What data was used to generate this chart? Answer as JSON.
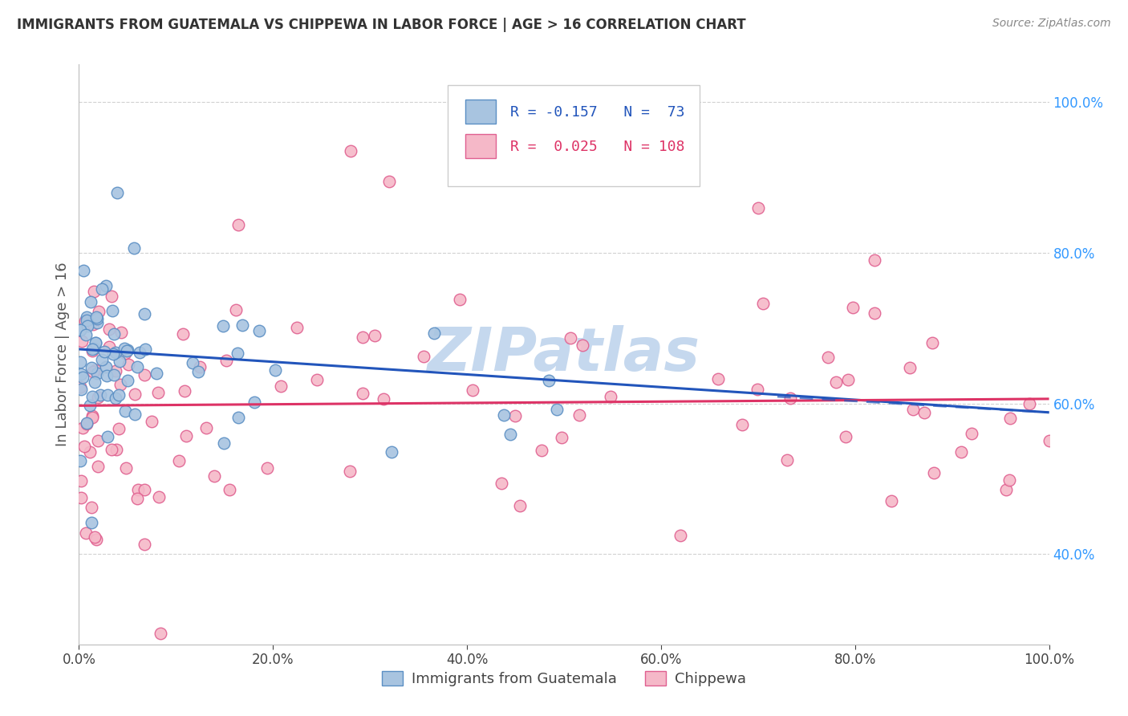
{
  "title": "IMMIGRANTS FROM GUATEMALA VS CHIPPEWA IN LABOR FORCE | AGE > 16 CORRELATION CHART",
  "source": "Source: ZipAtlas.com",
  "ylabel": "In Labor Force | Age > 16",
  "xlim": [
    0.0,
    1.0
  ],
  "ylim": [
    0.28,
    1.05
  ],
  "yticks": [
    0.4,
    0.6,
    0.8,
    1.0
  ],
  "ytick_labels": [
    "40.0%",
    "60.0%",
    "80.0%",
    "100.0%"
  ],
  "xticks": [
    0.0,
    0.2,
    0.4,
    0.6,
    0.8,
    1.0
  ],
  "xtick_labels": [
    "0.0%",
    "20.0%",
    "40.0%",
    "60.0%",
    "80.0%",
    "100.0%"
  ],
  "grid_color": "#cccccc",
  "background_color": "#ffffff",
  "series1_color": "#a8c4e0",
  "series1_edge": "#5b8fc4",
  "series2_color": "#f5b8c8",
  "series2_edge": "#e06090",
  "line1_color": "#2255bb",
  "line2_color": "#dd3366",
  "watermark": "ZIPatlas",
  "watermark_color": "#c5d8ee",
  "line1_y_at_0": 0.672,
  "line1_y_at_1": 0.588,
  "line2_y_at_0": 0.597,
  "line2_y_at_1": 0.606,
  "line1_dash_start": 0.72,
  "line1_dash_y_start": 0.609,
  "line1_dash_end": 1.0,
  "line1_dash_y_end": 0.588
}
